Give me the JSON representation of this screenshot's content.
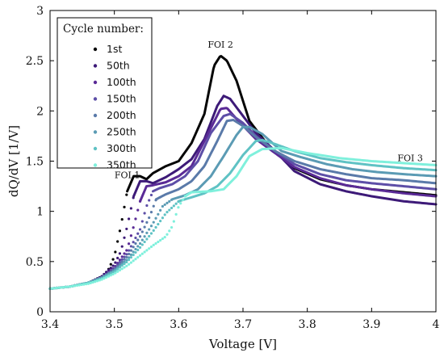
{
  "chart_data": {
    "type": "line",
    "xlabel": "Voltage [V]",
    "ylabel": "dQ/dV [1/V]",
    "xlim": [
      3.4,
      4.0
    ],
    "ylim": [
      0,
      3
    ],
    "x_ticks": [
      "3.4",
      "3.5",
      "3.6",
      "3.7",
      "3.8",
      "3.9",
      "4"
    ],
    "y_ticks": [
      "0",
      "0.5",
      "1",
      "1.5",
      "2",
      "2.5",
      "3"
    ],
    "grid": false,
    "legend": {
      "title": "Cycle number:",
      "position": "top-left"
    },
    "annotations": [
      {
        "text": "FOI 1",
        "x": 3.52,
        "y": 1.33
      },
      {
        "text": "FOI 2",
        "x": 3.665,
        "y": 2.63
      },
      {
        "text": "FOI 3",
        "x": 3.96,
        "y": 1.5
      }
    ],
    "series": [
      {
        "name": "1st",
        "color": "#050505",
        "points": [
          [
            3.4,
            0.23
          ],
          [
            3.43,
            0.25
          ],
          [
            3.46,
            0.29
          ],
          [
            3.48,
            0.35
          ],
          [
            3.49,
            0.41
          ],
          [
            3.5,
            0.55
          ],
          [
            3.51,
            0.85
          ],
          [
            3.52,
            1.2
          ],
          [
            3.53,
            1.35
          ],
          [
            3.54,
            1.35
          ],
          [
            3.55,
            1.32
          ],
          [
            3.56,
            1.38
          ],
          [
            3.58,
            1.45
          ],
          [
            3.6,
            1.5
          ],
          [
            3.62,
            1.68
          ],
          [
            3.64,
            1.97
          ],
          [
            3.655,
            2.45
          ],
          [
            3.665,
            2.55
          ],
          [
            3.675,
            2.5
          ],
          [
            3.69,
            2.3
          ],
          [
            3.71,
            1.9
          ],
          [
            3.74,
            1.65
          ],
          [
            3.78,
            1.43
          ],
          [
            3.82,
            1.32
          ],
          [
            3.86,
            1.26
          ],
          [
            3.9,
            1.22
          ],
          [
            3.95,
            1.19
          ],
          [
            4.0,
            1.16
          ]
        ]
      },
      {
        "name": "50th",
        "color": "#3d1a78",
        "points": [
          [
            3.4,
            0.23
          ],
          [
            3.43,
            0.25
          ],
          [
            3.46,
            0.29
          ],
          [
            3.48,
            0.35
          ],
          [
            3.5,
            0.47
          ],
          [
            3.51,
            0.6
          ],
          [
            3.52,
            0.85
          ],
          [
            3.53,
            1.15
          ],
          [
            3.54,
            1.3
          ],
          [
            3.55,
            1.3
          ],
          [
            3.56,
            1.28
          ],
          [
            3.58,
            1.34
          ],
          [
            3.6,
            1.42
          ],
          [
            3.62,
            1.52
          ],
          [
            3.64,
            1.72
          ],
          [
            3.66,
            2.05
          ],
          [
            3.67,
            2.15
          ],
          [
            3.68,
            2.12
          ],
          [
            3.7,
            1.95
          ],
          [
            3.72,
            1.78
          ],
          [
            3.75,
            1.6
          ],
          [
            3.78,
            1.4
          ],
          [
            3.82,
            1.27
          ],
          [
            3.86,
            1.2
          ],
          [
            3.9,
            1.15
          ],
          [
            3.95,
            1.1
          ],
          [
            4.0,
            1.07
          ]
        ]
      },
      {
        "name": "100th",
        "color": "#5a2a96",
        "points": [
          [
            3.4,
            0.23
          ],
          [
            3.43,
            0.25
          ],
          [
            3.46,
            0.29
          ],
          [
            3.48,
            0.34
          ],
          [
            3.5,
            0.44
          ],
          [
            3.52,
            0.62
          ],
          [
            3.53,
            0.85
          ],
          [
            3.54,
            1.1
          ],
          [
            3.55,
            1.25
          ],
          [
            3.56,
            1.26
          ],
          [
            3.58,
            1.29
          ],
          [
            3.6,
            1.35
          ],
          [
            3.62,
            1.45
          ],
          [
            3.64,
            1.7
          ],
          [
            3.665,
            2.02
          ],
          [
            3.675,
            2.03
          ],
          [
            3.69,
            1.92
          ],
          [
            3.72,
            1.72
          ],
          [
            3.75,
            1.58
          ],
          [
            3.78,
            1.44
          ],
          [
            3.82,
            1.33
          ],
          [
            3.86,
            1.26
          ],
          [
            3.9,
            1.22
          ],
          [
            3.95,
            1.18
          ],
          [
            4.0,
            1.15
          ]
        ]
      },
      {
        "name": "150th",
        "color": "#5d4ea7",
        "points": [
          [
            3.4,
            0.23
          ],
          [
            3.43,
            0.25
          ],
          [
            3.46,
            0.29
          ],
          [
            3.48,
            0.34
          ],
          [
            3.5,
            0.43
          ],
          [
            3.52,
            0.58
          ],
          [
            3.54,
            0.82
          ],
          [
            3.55,
            1.05
          ],
          [
            3.56,
            1.2
          ],
          [
            3.57,
            1.23
          ],
          [
            3.59,
            1.27
          ],
          [
            3.61,
            1.35
          ],
          [
            3.63,
            1.5
          ],
          [
            3.65,
            1.78
          ],
          [
            3.67,
            1.95
          ],
          [
            3.68,
            1.97
          ],
          [
            3.7,
            1.88
          ],
          [
            3.72,
            1.75
          ],
          [
            3.75,
            1.6
          ],
          [
            3.78,
            1.47
          ],
          [
            3.82,
            1.37
          ],
          [
            3.86,
            1.31
          ],
          [
            3.9,
            1.28
          ],
          [
            3.95,
            1.25
          ],
          [
            4.0,
            1.22
          ]
        ]
      },
      {
        "name": "200th",
        "color": "#5a7aa9",
        "points": [
          [
            3.4,
            0.23
          ],
          [
            3.43,
            0.25
          ],
          [
            3.46,
            0.29
          ],
          [
            3.48,
            0.34
          ],
          [
            3.5,
            0.42
          ],
          [
            3.52,
            0.55
          ],
          [
            3.54,
            0.75
          ],
          [
            3.555,
            0.95
          ],
          [
            3.565,
            1.12
          ],
          [
            3.58,
            1.17
          ],
          [
            3.6,
            1.22
          ],
          [
            3.62,
            1.3
          ],
          [
            3.64,
            1.45
          ],
          [
            3.66,
            1.7
          ],
          [
            3.675,
            1.9
          ],
          [
            3.685,
            1.91
          ],
          [
            3.7,
            1.85
          ],
          [
            3.72,
            1.74
          ],
          [
            3.75,
            1.6
          ],
          [
            3.78,
            1.5
          ],
          [
            3.82,
            1.42
          ],
          [
            3.86,
            1.37
          ],
          [
            3.9,
            1.33
          ],
          [
            3.95,
            1.31
          ],
          [
            4.0,
            1.28
          ]
        ]
      },
      {
        "name": "250th",
        "color": "#5b9bb4",
        "points": [
          [
            3.4,
            0.23
          ],
          [
            3.43,
            0.25
          ],
          [
            3.46,
            0.29
          ],
          [
            3.48,
            0.34
          ],
          [
            3.5,
            0.41
          ],
          [
            3.52,
            0.52
          ],
          [
            3.54,
            0.68
          ],
          [
            3.56,
            0.88
          ],
          [
            3.575,
            1.05
          ],
          [
            3.59,
            1.12
          ],
          [
            3.61,
            1.16
          ],
          [
            3.63,
            1.22
          ],
          [
            3.65,
            1.35
          ],
          [
            3.67,
            1.55
          ],
          [
            3.69,
            1.76
          ],
          [
            3.7,
            1.84
          ],
          [
            3.71,
            1.84
          ],
          [
            3.73,
            1.77
          ],
          [
            3.76,
            1.6
          ],
          [
            3.79,
            1.54
          ],
          [
            3.83,
            1.47
          ],
          [
            3.87,
            1.42
          ],
          [
            3.91,
            1.39
          ],
          [
            3.95,
            1.37
          ],
          [
            4.0,
            1.35
          ]
        ]
      },
      {
        "name": "300th",
        "color": "#5fc2c4",
        "points": [
          [
            3.4,
            0.23
          ],
          [
            3.43,
            0.25
          ],
          [
            3.46,
            0.29
          ],
          [
            3.48,
            0.33
          ],
          [
            3.5,
            0.4
          ],
          [
            3.52,
            0.5
          ],
          [
            3.54,
            0.64
          ],
          [
            3.56,
            0.8
          ],
          [
            3.58,
            0.98
          ],
          [
            3.6,
            1.1
          ],
          [
            3.62,
            1.14
          ],
          [
            3.64,
            1.18
          ],
          [
            3.66,
            1.25
          ],
          [
            3.68,
            1.38
          ],
          [
            3.7,
            1.56
          ],
          [
            3.72,
            1.7
          ],
          [
            3.73,
            1.71
          ],
          [
            3.75,
            1.67
          ],
          [
            3.78,
            1.6
          ],
          [
            3.82,
            1.53
          ],
          [
            3.86,
            1.49
          ],
          [
            3.9,
            1.46
          ],
          [
            3.95,
            1.43
          ],
          [
            4.0,
            1.41
          ]
        ]
      },
      {
        "name": "350th",
        "color": "#7ff0dc",
        "points": [
          [
            3.4,
            0.23
          ],
          [
            3.43,
            0.25
          ],
          [
            3.46,
            0.28
          ],
          [
            3.48,
            0.32
          ],
          [
            3.5,
            0.38
          ],
          [
            3.52,
            0.46
          ],
          [
            3.54,
            0.56
          ],
          [
            3.56,
            0.66
          ],
          [
            3.58,
            0.75
          ],
          [
            3.59,
            0.85
          ],
          [
            3.6,
            1.05
          ],
          [
            3.61,
            1.15
          ],
          [
            3.62,
            1.19
          ],
          [
            3.65,
            1.2
          ],
          [
            3.67,
            1.22
          ],
          [
            3.69,
            1.35
          ],
          [
            3.71,
            1.55
          ],
          [
            3.73,
            1.62
          ],
          [
            3.76,
            1.63
          ],
          [
            3.8,
            1.58
          ],
          [
            3.85,
            1.53
          ],
          [
            3.9,
            1.5
          ],
          [
            3.95,
            1.48
          ],
          [
            4.0,
            1.46
          ]
        ]
      }
    ]
  }
}
